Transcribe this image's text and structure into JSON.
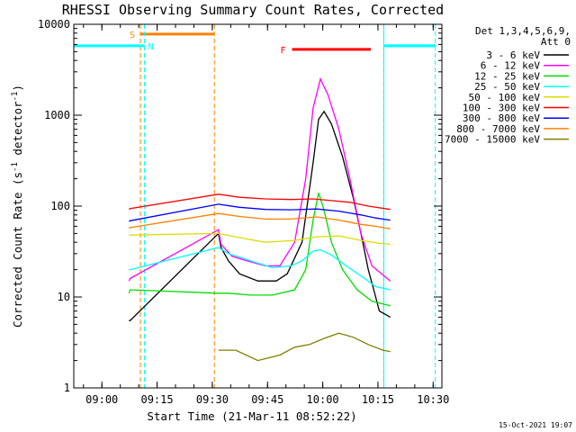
{
  "chart_data": {
    "type": "line",
    "title": "RHESSI Observing Summary Count Rates, Corrected",
    "xlabel": "Start Time (21-Mar-11 08:52:22)",
    "ylabel_main": "Corrected Count Rate (s",
    "ylabel_sup1": "-1",
    "ylabel_mid": " detector",
    "ylabel_sup2": "-1",
    "ylabel_end": ")",
    "yscale": "log",
    "ylim": [
      1,
      10000
    ],
    "xlim_minutes": [
      0,
      100
    ],
    "x_ticks": [
      {
        "label": "09:00",
        "minute": 7.63
      },
      {
        "label": "09:15",
        "minute": 22.63
      },
      {
        "label": "09:30",
        "minute": 37.63
      },
      {
        "label": "09:45",
        "minute": 52.63
      },
      {
        "label": "10:00",
        "minute": 67.63
      },
      {
        "label": "10:15",
        "minute": 82.63
      },
      {
        "label": "10:30",
        "minute": 97.63
      }
    ],
    "y_ticks": [
      {
        "label": "1",
        "value": 1
      },
      {
        "label": "10",
        "value": 10
      },
      {
        "label": "100",
        "value": 100
      },
      {
        "label": "1000",
        "value": 1000
      },
      {
        "label": "10000",
        "value": 10000
      }
    ],
    "legend_header": [
      "Det 1,3,4,5,6,9,",
      "Att 0"
    ],
    "legend_position": "top-right",
    "series": [
      {
        "name": "3 - 6 keV",
        "color": "#000000",
        "x": [
          15.0,
          15.3,
          39.3,
          40.0,
          42.0,
          45.0,
          50.0,
          55.0,
          58.0,
          62.0,
          65.0,
          66.5,
          68.0,
          70.0,
          73.0,
          76.0,
          78.5,
          80.0,
          81.5,
          83.0,
          86.0
        ],
        "y": [
          5.5,
          5.5,
          50,
          35,
          25,
          18,
          15,
          15,
          18,
          40,
          300,
          900,
          1100,
          800,
          350,
          120,
          40,
          20,
          12,
          7,
          6
        ]
      },
      {
        "name": "6 - 12 keV",
        "color": "#ff00ff",
        "x": [
          15.0,
          15.3,
          39.3,
          40.0,
          43.0,
          47.0,
          52.0,
          56.0,
          60.0,
          63.0,
          65.0,
          67.0,
          69.0,
          72.0,
          75.0,
          78.0,
          81.0,
          86.0
        ],
        "y": [
          15,
          16,
          55,
          38,
          28,
          25,
          22,
          22,
          40,
          200,
          1200,
          2500,
          1700,
          700,
          200,
          50,
          22,
          15
        ]
      },
      {
        "name": "12 - 25 keV",
        "color": "#00dd00",
        "x": [
          15.0,
          15.3,
          39.3,
          42.0,
          48.0,
          54.0,
          60.0,
          63.0,
          65.0,
          66.5,
          68.0,
          70.0,
          73.0,
          77.0,
          81.0,
          86.0
        ],
        "y": [
          11,
          12,
          11,
          11,
          10.5,
          10.5,
          12,
          20,
          70,
          140,
          90,
          40,
          20,
          12,
          9,
          8
        ]
      },
      {
        "name": "25 - 50 keV",
        "color": "#00ffff",
        "x": [
          15.0,
          15.3,
          39.3,
          42.0,
          48.0,
          54.0,
          59.0,
          62.0,
          65.0,
          67.0,
          70.0,
          74.0,
          79.0,
          82.0,
          86.0
        ],
        "y": [
          20,
          20,
          35,
          30,
          25,
          21,
          22,
          25,
          32,
          33,
          29,
          22,
          16,
          13,
          12
        ]
      },
      {
        "name": "50 - 100 keV",
        "color": "#dddd00",
        "x": [
          15.0,
          15.3,
          39.3,
          45.0,
          52.0,
          60.0,
          66.0,
          72.0,
          78.0,
          83.0,
          86.0
        ],
        "y": [
          48,
          48,
          50,
          45,
          40,
          42,
          46,
          47,
          42,
          39,
          38
        ]
      },
      {
        "name": "100 - 300 keV",
        "color": "#ff0000",
        "x": [
          15.0,
          15.3,
          39.3,
          45.0,
          52.0,
          59.0,
          65.0,
          70.0,
          75.0,
          80.0,
          86.0
        ],
        "y": [
          92,
          94,
          135,
          125,
          120,
          118,
          120,
          115,
          110,
          100,
          92
        ]
      },
      {
        "name": "300 - 800 keV",
        "color": "#0000ff",
        "x": [
          15.0,
          15.3,
          39.3,
          45.0,
          52.0,
          59.0,
          66.0,
          72.0,
          78.0,
          82.0,
          86.0
        ],
        "y": [
          68,
          69,
          105,
          97,
          92,
          91,
          93,
          88,
          80,
          74,
          70
        ]
      },
      {
        "name": "800 - 7000 keV",
        "color": "#ff8000",
        "x": [
          15.0,
          15.3,
          39.3,
          45.0,
          52.0,
          59.0,
          66.0,
          72.0,
          78.0,
          82.0,
          86.0
        ],
        "y": [
          57,
          58,
          83,
          77,
          72,
          72,
          76,
          70,
          63,
          60,
          56
        ]
      },
      {
        "name": "7000 - 15000 keV",
        "color": "#808000",
        "x": [
          39.3,
          44.0,
          50.0,
          56.0,
          60.0,
          64.0,
          68.0,
          72.0,
          76.0,
          80.0,
          84.0,
          86.0
        ],
        "y": [
          2.6,
          2.6,
          2.0,
          2.3,
          2.8,
          3.0,
          3.5,
          4.0,
          3.6,
          3.0,
          2.6,
          2.5
        ]
      }
    ],
    "orbit_markers": [
      {
        "label": "S",
        "start_minute": 18.1,
        "end_minute": 38.2,
        "color": "#ff8000",
        "style": "dashed",
        "bar_level": 7800
      },
      {
        "label": "N",
        "start_minute": 19.2,
        "end_minute": 0,
        "color": "#00ffff",
        "style": "dashed",
        "bar_level": 5800
      },
      {
        "label": "",
        "start_minute": 84.2,
        "end_minute": 98.2,
        "color": "#00ffff",
        "style": "dashed",
        "bar_level": 5800
      },
      {
        "label": "",
        "start_minute": 0,
        "end_minute": 84.2,
        "color": "#00ffff",
        "style": "solid",
        "bar_level": 0
      }
    ],
    "flare_marker": {
      "label": "F",
      "start_minute": 59.3,
      "end_minute": 80.7,
      "color": "#ff0000",
      "bar_level": 5300
    },
    "grid": false
  },
  "footer": {
    "timestamp": "15-Oct-2021 19:07"
  }
}
